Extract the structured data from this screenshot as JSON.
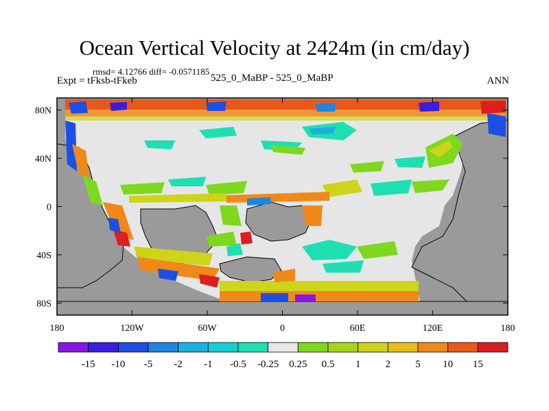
{
  "chart_data": {
    "type": "contour-map",
    "title": "Ocean Vertical Velocity at 2424m (in cm/day)",
    "stats_label": "rmsd= 4.12766 diff= -0.0571185",
    "experiment_label": "Expt = tFksb-tFkeb",
    "case_label": "525_0_MaBP - 525_0_MaBP",
    "season": "ANN",
    "x_ticks": [
      {
        "label": "180",
        "value": -180
      },
      {
        "label": "120W",
        "value": -120
      },
      {
        "label": "60W",
        "value": -60
      },
      {
        "label": "0",
        "value": 0
      },
      {
        "label": "60E",
        "value": 60
      },
      {
        "label": "120E",
        "value": 120
      },
      {
        "label": "180",
        "value": 180
      }
    ],
    "y_ticks": [
      {
        "label": "80N",
        "value": 80
      },
      {
        "label": "40N",
        "value": 40
      },
      {
        "label": "0",
        "value": 0
      },
      {
        "label": "40S",
        "value": -40
      },
      {
        "label": "80S",
        "value": -80
      }
    ],
    "xlim": [
      -180,
      180
    ],
    "ylim": [
      -90,
      90
    ],
    "levels": [
      "-15",
      "-10",
      "-5",
      "-2",
      "-1",
      "-0.5",
      "-0.25",
      "0.25",
      "0.5",
      "1",
      "2",
      "5",
      "10",
      "15"
    ],
    "colors": [
      "#8a14e6",
      "#3a1ee0",
      "#1c4fe6",
      "#1e86e2",
      "#19b2df",
      "#12cfd6",
      "#1edfb2",
      "#e6e6e6",
      "#7ed81e",
      "#a6d61a",
      "#cdd41a",
      "#e8be18",
      "#ef8a18",
      "#e8581a",
      "#dc1e1e"
    ],
    "land_color": "#9a9a9a",
    "zero_band_color": "#e6e6e6"
  }
}
